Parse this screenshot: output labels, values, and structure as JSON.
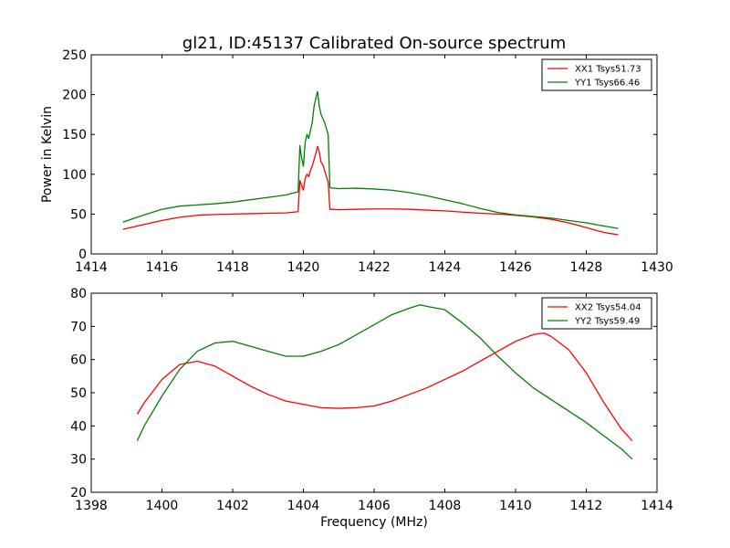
{
  "chart_data": [
    {
      "type": "line",
      "title": "gl21, ID:45137 Calibrated On-source spectrum",
      "xlabel": "",
      "ylabel": "Power in Kelvin",
      "xlim": [
        1414,
        1430
      ],
      "ylim": [
        0,
        250
      ],
      "xticks": [
        "1414",
        "1416",
        "1418",
        "1420",
        "1422",
        "1424",
        "1426",
        "1428",
        "1430"
      ],
      "yticks": [
        "0",
        "50",
        "100",
        "150",
        "200",
        "250"
      ],
      "legend_position": "top-right",
      "series": [
        {
          "name": "XX1 Tsys51.73",
          "color": "#ff0000",
          "x": [
            1414.9,
            1415.5,
            1416.0,
            1416.5,
            1417.0,
            1417.5,
            1418.0,
            1418.5,
            1419.0,
            1419.5,
            1419.85,
            1419.9,
            1420.0,
            1420.05,
            1420.1,
            1420.15,
            1420.2,
            1420.25,
            1420.3,
            1420.35,
            1420.4,
            1420.45,
            1420.5,
            1420.55,
            1420.6,
            1420.7,
            1420.75,
            1421.0,
            1421.5,
            1422.0,
            1422.5,
            1423.0,
            1423.5,
            1424.0,
            1424.5,
            1425.0,
            1425.5,
            1426.0,
            1426.5,
            1427.0,
            1427.5,
            1428.0,
            1428.5,
            1428.9
          ],
          "values": [
            31,
            37,
            42,
            46,
            48.5,
            49.5,
            50,
            50.5,
            51,
            51.5,
            53,
            92,
            80,
            95,
            100,
            97,
            105,
            110,
            118,
            126,
            135,
            128,
            115,
            112,
            105,
            90,
            56,
            55.5,
            56,
            56.5,
            56.5,
            56,
            55,
            54,
            52.5,
            51,
            50,
            48.5,
            46.5,
            43.5,
            39,
            33,
            27,
            24
          ]
        },
        {
          "name": "YY1 Tsys66.46",
          "color": "#008000",
          "x": [
            1414.9,
            1415.5,
            1416.0,
            1416.5,
            1417.0,
            1417.5,
            1418.0,
            1418.5,
            1419.0,
            1419.5,
            1419.85,
            1419.9,
            1419.95,
            1420.0,
            1420.05,
            1420.1,
            1420.15,
            1420.2,
            1420.25,
            1420.3,
            1420.35,
            1420.4,
            1420.45,
            1420.5,
            1420.55,
            1420.6,
            1420.7,
            1420.75,
            1421.0,
            1421.5,
            1422.0,
            1422.5,
            1423.0,
            1423.5,
            1424.0,
            1424.5,
            1425.0,
            1425.5,
            1426.0,
            1426.5,
            1427.0,
            1427.5,
            1428.0,
            1428.5,
            1428.9
          ],
          "values": [
            40,
            49,
            56,
            60,
            61.5,
            63,
            65,
            68,
            71,
            74,
            78,
            136,
            120,
            110,
            140,
            150,
            145,
            155,
            165,
            185,
            195,
            204,
            185,
            175,
            170,
            165,
            150,
            83,
            82,
            82.5,
            81.5,
            80,
            77,
            73,
            68,
            63,
            57,
            52,
            49,
            47,
            45,
            42,
            39,
            35,
            32
          ]
        }
      ]
    },
    {
      "type": "line",
      "title": "",
      "xlabel": "Frequency (MHz)",
      "ylabel": "",
      "xlim": [
        1398,
        1414
      ],
      "ylim": [
        20,
        80
      ],
      "xticks": [
        "1398",
        "1400",
        "1402",
        "1404",
        "1406",
        "1408",
        "1410",
        "1412",
        "1414"
      ],
      "yticks": [
        "20",
        "30",
        "40",
        "50",
        "60",
        "70",
        "80"
      ],
      "legend_position": "top-right",
      "series": [
        {
          "name": "XX2 Tsys54.04",
          "color": "#ff0000",
          "x": [
            1399.3,
            1399.5,
            1400.0,
            1400.5,
            1401.0,
            1401.5,
            1402.0,
            1402.5,
            1403.0,
            1403.5,
            1404.0,
            1404.5,
            1405.0,
            1405.5,
            1406.0,
            1406.5,
            1407.0,
            1407.5,
            1408.0,
            1408.5,
            1409.0,
            1409.5,
            1410.0,
            1410.5,
            1410.8,
            1411.0,
            1411.5,
            1412.0,
            1412.5,
            1413.0,
            1413.3
          ],
          "values": [
            43.5,
            47,
            54,
            58.5,
            59.5,
            58,
            55,
            52,
            49.5,
            47.5,
            46.5,
            45.5,
            45.3,
            45.5,
            46,
            47.5,
            49.5,
            51.5,
            54,
            56.5,
            59.5,
            62.5,
            65.5,
            67.5,
            68,
            67,
            63,
            56,
            47,
            39,
            35.5
          ]
        },
        {
          "name": "YY2 Tsys59.49",
          "color": "#008000",
          "x": [
            1399.3,
            1399.5,
            1400.0,
            1400.5,
            1401.0,
            1401.5,
            1402.0,
            1402.5,
            1403.0,
            1403.5,
            1404.0,
            1404.5,
            1405.0,
            1405.5,
            1406.0,
            1406.5,
            1407.0,
            1407.3,
            1407.5,
            1408.0,
            1408.5,
            1409.0,
            1409.5,
            1410.0,
            1410.5,
            1411.0,
            1411.5,
            1412.0,
            1412.5,
            1413.0,
            1413.3
          ],
          "values": [
            35.5,
            40,
            49,
            57,
            62.5,
            65,
            65.5,
            64,
            62.5,
            61,
            61,
            62.5,
            64.5,
            67.5,
            70.5,
            73.5,
            75.5,
            76.5,
            76,
            75,
            71,
            66.5,
            61,
            56,
            51.5,
            48,
            44.5,
            41,
            37,
            33,
            30
          ]
        }
      ]
    }
  ]
}
